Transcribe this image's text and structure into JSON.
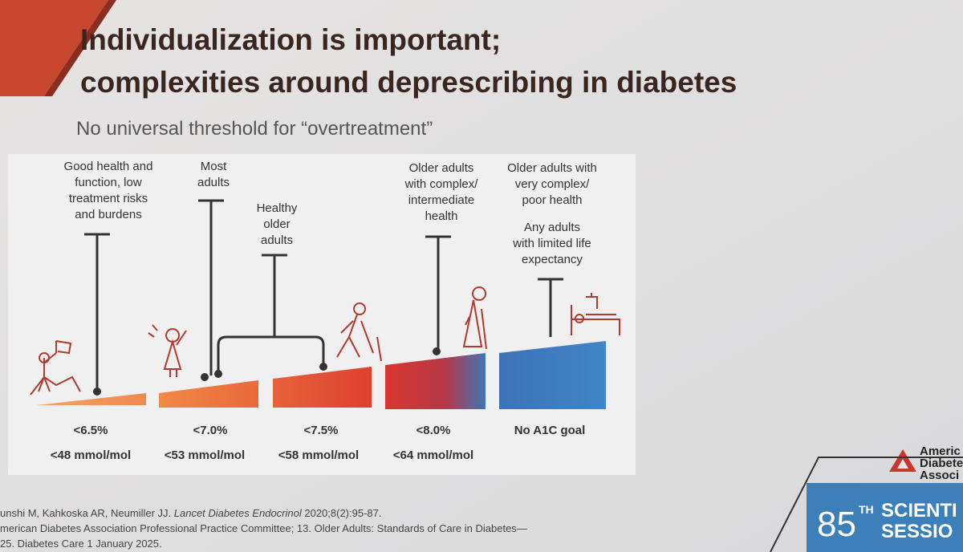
{
  "title": [
    "Individualization is important;",
    "complexities around deprescribing in diabetes"
  ],
  "subtitle": "No universal threshold for “overtreatment”",
  "groups": [
    {
      "label": [
        "Good health and",
        "function, low",
        "treatment risks",
        "and burdens"
      ],
      "target": "<6.5%",
      "mmol": "<48 mmol/mol"
    },
    {
      "label": [
        "Most",
        "adults"
      ],
      "target": "<7.0%",
      "mmol": "<53 mmol/mol"
    },
    {
      "label": [
        "Healthy",
        "older",
        "adults"
      ],
      "target": "<7.5%",
      "mmol": "<58 mmol/mol"
    },
    {
      "label": [
        "Older adults",
        "with complex/",
        "intermediate",
        "health"
      ],
      "target": "<8.0%",
      "mmol": "<64 mmol/mol"
    },
    {
      "label": [
        "Older adults with",
        "very complex/",
        "poor health"
      ],
      "label2": [
        "Any adults",
        "with limited life",
        "expectancy"
      ],
      "target": "No A1C goal"
    }
  ],
  "references": [
    [
      "unshi M, Kahkoska AR, Neumiller JJ. ",
      "Lancet Diabetes Endocrinol",
      " 2020;8(2):95-87."
    ],
    [
      "merican Diabetes Association Professional Practice Committee; 13. Older Adults: Standards of Care in Diabetes—"
    ],
    [
      "25. Diabetes Care 1 January 2025."
    ]
  ],
  "logo": {
    "org": [
      "Americ",
      "Diabete",
      "Associ"
    ],
    "number": "85",
    "suffix": "TH",
    "event": [
      "SCIENTI",
      "SESSIO"
    ]
  }
}
